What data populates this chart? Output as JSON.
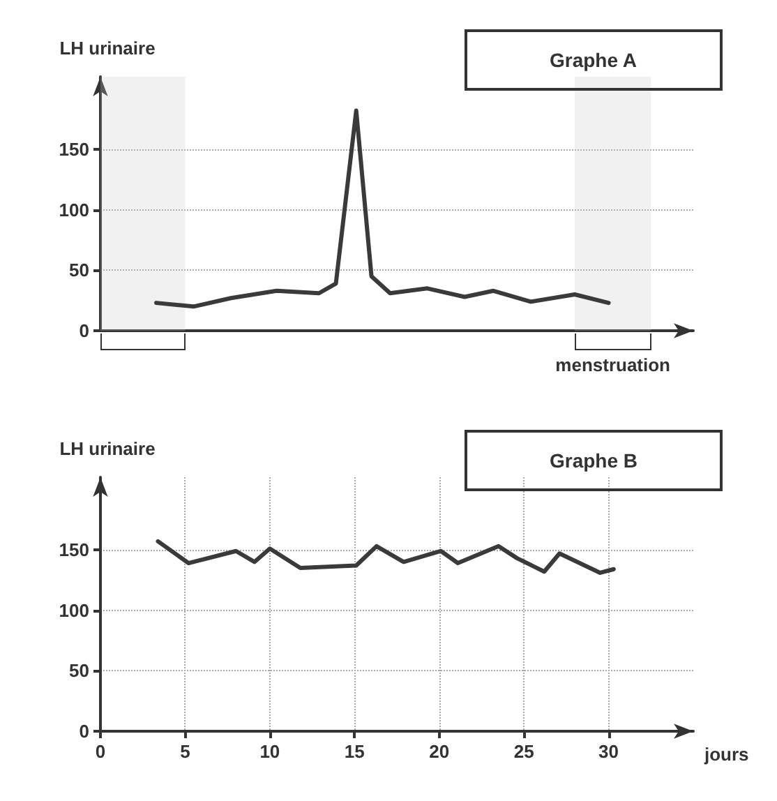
{
  "chart_data": [
    {
      "type": "line",
      "title": "Graphe A",
      "ylabel": "LH urinaire",
      "color": "#3a3a3a",
      "marker": "none",
      "line_style": "solid",
      "grid": "y",
      "tick_labels": "y",
      "xlim": [
        0,
        35
      ],
      "ylim": [
        0,
        210
      ],
      "yticks": [
        0,
        50,
        100,
        150
      ],
      "x": [
        3.3,
        5.5,
        7.7,
        10.4,
        12.9,
        13.9,
        15.1,
        16,
        17.1,
        19.3,
        21.5,
        23.2,
        25.4,
        28,
        30
      ],
      "values": [
        23,
        20,
        27,
        33,
        31,
        39,
        182,
        45,
        31,
        35,
        28,
        33,
        24,
        30,
        23
      ],
      "bands": [
        {
          "axis": "x",
          "from": 0,
          "to": 5,
          "label": null
        },
        {
          "axis": "x",
          "from": 28,
          "to": 32.5,
          "label": "menstruation"
        }
      ]
    },
    {
      "type": "line",
      "title": "Graphe B",
      "ylabel": "LH urinaire",
      "xlabel": "jours",
      "color": "#3a3a3a",
      "marker": "none",
      "line_style": "solid",
      "grid": true,
      "xlim": [
        0,
        35
      ],
      "xticks": [
        0,
        5,
        10,
        15,
        20,
        25,
        30
      ],
      "ylim": [
        0,
        210
      ],
      "yticks": [
        0,
        50,
        100,
        150
      ],
      "x": [
        3.4,
        5.2,
        8,
        9.1,
        10,
        11.8,
        15.1,
        16.3,
        17.9,
        20.1,
        21.1,
        23.5,
        24.6,
        26.2,
        27.1,
        29.5,
        30.3
      ],
      "values": [
        157,
        139,
        149,
        140,
        151,
        135,
        137,
        153,
        140,
        149,
        139,
        153,
        143,
        132,
        147,
        131,
        134
      ]
    }
  ]
}
